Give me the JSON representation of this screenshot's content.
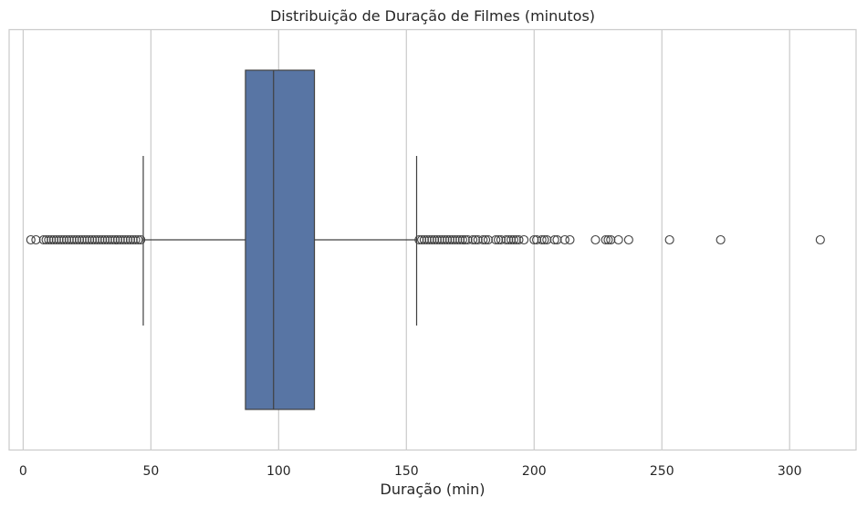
{
  "chart_data": {
    "type": "boxplot",
    "orientation": "horizontal",
    "title": "Distribuição de Duração de Filmes (minutos)",
    "xlabel": "Duração (min)",
    "ylabel": "",
    "xlim": [
      -5.5,
      326
    ],
    "xticks": [
      0,
      50,
      100,
      150,
      200,
      250,
      300
    ],
    "tick_labels": [
      "0",
      "50",
      "100",
      "150",
      "200",
      "250",
      "300"
    ],
    "grid": "vertical",
    "stats": {
      "whisker_low": 47,
      "q1": 87,
      "median": 98,
      "q3": 114,
      "whisker_high": 154
    },
    "outliers": [
      3,
      5,
      8,
      9,
      10,
      11,
      12,
      13,
      14,
      15,
      16,
      17,
      18,
      19,
      20,
      21,
      22,
      23,
      24,
      25,
      26,
      27,
      28,
      29,
      30,
      31,
      32,
      33,
      34,
      35,
      36,
      37,
      38,
      39,
      40,
      41,
      42,
      43,
      44,
      45,
      46,
      155,
      156,
      157,
      158,
      159,
      160,
      161,
      162,
      163,
      164,
      165,
      166,
      167,
      168,
      169,
      170,
      171,
      172,
      173,
      174,
      176,
      177,
      178,
      180,
      181,
      182,
      185,
      186,
      187,
      189,
      190,
      191,
      192,
      193,
      194,
      196,
      200,
      201,
      203,
      204,
      205,
      208,
      209,
      212,
      214,
      224,
      228,
      229,
      230,
      233,
      237,
      253,
      273,
      312
    ],
    "colors": {
      "box": "#5875a4",
      "lines": "#404040",
      "grid": "#cccccc",
      "frame": "#cccccc"
    }
  }
}
